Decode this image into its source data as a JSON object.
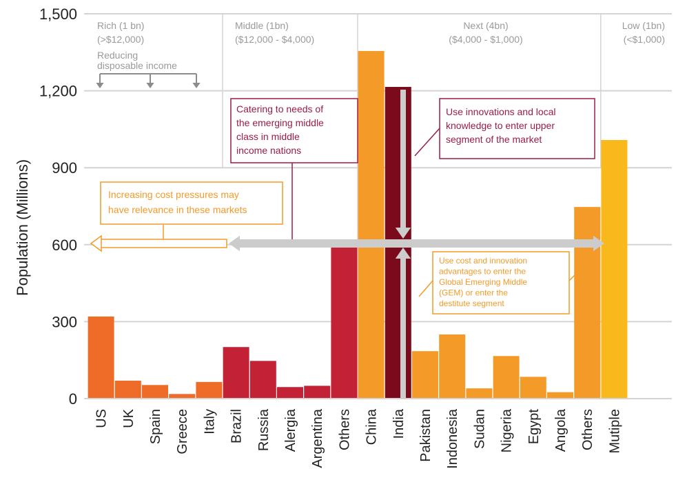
{
  "chart_data": {
    "type": "bar",
    "ylabel": "Population  (Millions)",
    "ylim": [
      0,
      1500
    ],
    "y_ticks": [
      0,
      300,
      600,
      900,
      1200,
      1500
    ],
    "y_tick_labels": [
      "0",
      "300",
      "600",
      "900",
      "1,200",
      "1,500"
    ],
    "grid": true,
    "categories": [
      "US",
      "UK",
      "Spain",
      "Greece",
      "Italy",
      "Brazil",
      "Russia",
      "Alergia",
      "Argentina",
      "Others",
      "China",
      "India",
      "Pakistan",
      "Indonesia",
      "Sudan",
      "Nigeria",
      "Egypt",
      "Angola",
      "Others",
      "Mutiple"
    ],
    "values": [
      320,
      70,
      53,
      18,
      65,
      201,
      147,
      45,
      50,
      592,
      1355,
      1215,
      185,
      250,
      40,
      166,
      85,
      25,
      747,
      1008
    ],
    "colors": {
      "rich": "#ef6c28",
      "middle": "#c22136",
      "next": "#f39a28",
      "india": "#7b0b1c",
      "low": "#f9b81b",
      "annot_purple": "#9b1c44",
      "annot_orange": "#f39a28",
      "arrow_gray": "#cccccc",
      "grid": "#d6d3d0",
      "segment_text": "#9a9a9a"
    },
    "bar_groups": [
      "rich",
      "rich",
      "rich",
      "rich",
      "rich",
      "middle",
      "middle",
      "middle",
      "middle",
      "middle",
      "next",
      "india",
      "next",
      "next",
      "next",
      "next",
      "next",
      "next",
      "next",
      "low"
    ],
    "segments": [
      {
        "line1": "Rich (1 bn)",
        "line2": "(>$12,000)"
      },
      {
        "line1": "Middle (1bn)",
        "line2": "($12,000 - $4,000)"
      },
      {
        "line1": "Next (4bn)",
        "line2": "($4,000 - $1,000)"
      },
      {
        "line1": "Low (1bn)",
        "line2": "(<$1,000)"
      }
    ],
    "reducing_label": [
      "Reducing",
      "disposable income"
    ],
    "annotations": {
      "cost_pressures": [
        "Increasing cost pressures  may",
        "have relevance in  these markets"
      ],
      "emerging_middle": [
        "Catering to needs of",
        "the emerging middle",
        "class in middle",
        "income nations"
      ],
      "innovations": [
        "Use innovations and local",
        "knowledge to enter upper",
        "segment of the market"
      ],
      "gem": [
        "Use cost and innovation",
        "advantages to enter the",
        "Global Emerging Middle",
        "(GEM) or enter the",
        "destitute segment"
      ]
    }
  }
}
